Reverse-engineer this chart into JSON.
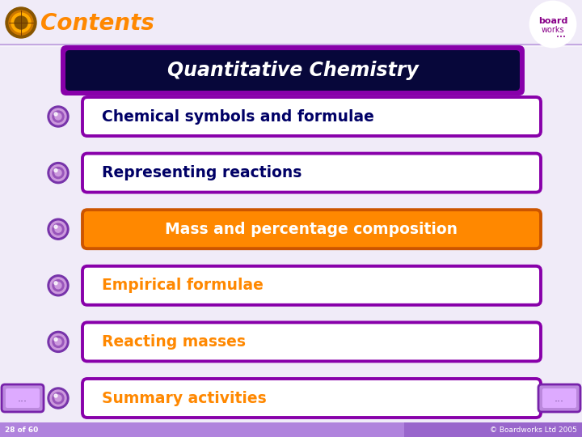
{
  "bg_color": "#f0ebf8",
  "title_text": "Contents",
  "title_color": "#ff8800",
  "header_text": "Quantitative Chemistry",
  "header_bg": "#07073a",
  "header_border": "#8800aa",
  "items": [
    {
      "text": "Chemical symbols and formulae",
      "bg": "#ffffff",
      "text_color": "#000066",
      "border": "#8800aa",
      "highlighted": false
    },
    {
      "text": "Representing reactions",
      "bg": "#ffffff",
      "text_color": "#000066",
      "border": "#8800aa",
      "highlighted": false
    },
    {
      "text": "Mass and percentage composition",
      "bg": "#ff8800",
      "text_color": "#ffffff",
      "border": "#cc5500",
      "highlighted": true
    },
    {
      "text": "Empirical formulae",
      "bg": "#ffffff",
      "text_color": "#ff8800",
      "border": "#8800aa",
      "highlighted": false
    },
    {
      "text": "Reacting masses",
      "bg": "#ffffff",
      "text_color": "#ff8800",
      "border": "#8800aa",
      "highlighted": false
    },
    {
      "text": "Summary activities",
      "bg": "#ffffff",
      "text_color": "#ff8800",
      "border": "#8800aa",
      "highlighted": false
    }
  ],
  "footer_bar_color": "#9966cc",
  "footer_bg_color": "#d9b3ff",
  "footer_text_left": "28 of 60",
  "footer_text_right": "© Boardworks Ltd 2005",
  "footer_text_color": "#ffffff",
  "top_line_color": "#9966cc",
  "fig_width": 7.2,
  "fig_height": 5.4,
  "dpi": 100
}
